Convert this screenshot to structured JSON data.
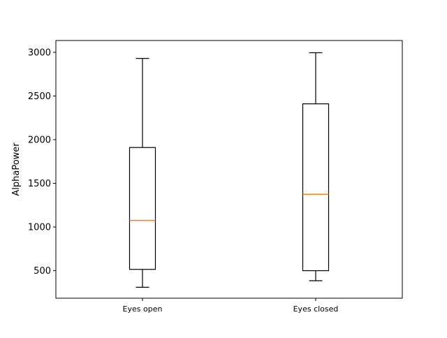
{
  "chart_data": {
    "type": "box",
    "title": "",
    "xlabel": "",
    "ylabel": "AlphaPower",
    "ylim": [
      185,
      3135
    ],
    "y_ticks": [
      500,
      1000,
      1500,
      2000,
      2500,
      3000
    ],
    "y_tick_labels": [
      "500",
      "1000",
      "1500",
      "2000",
      "2500",
      "3000"
    ],
    "categories": [
      "Eyes open",
      "Eyes closed"
    ],
    "boxes": [
      {
        "category": "Eyes open",
        "whisker_low": 310,
        "q1": 515,
        "median": 1075,
        "q3": 1910,
        "whisker_high": 2930
      },
      {
        "category": "Eyes closed",
        "whisker_low": 385,
        "q1": 500,
        "median": 1375,
        "q3": 2410,
        "whisker_high": 2995
      }
    ],
    "grid": false,
    "colors": {
      "box": "#000000",
      "median": "#ff7f0e",
      "axes": "#000000"
    }
  }
}
